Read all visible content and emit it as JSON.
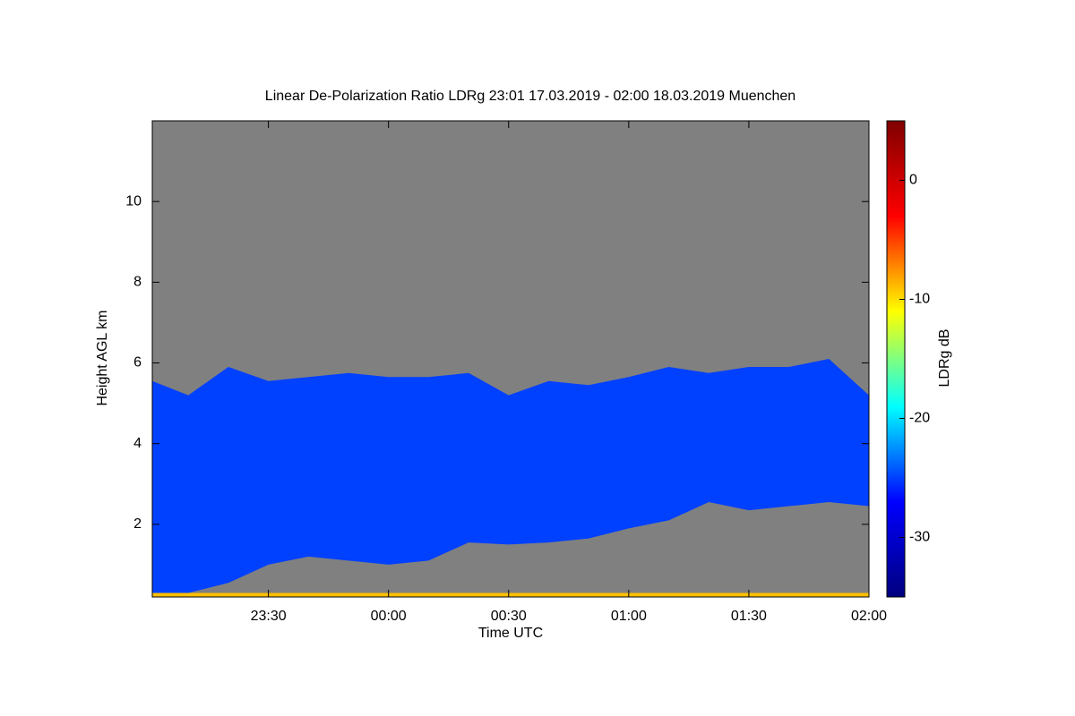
{
  "chart_data": {
    "type": "time-height",
    "title": "Linear De-Polarization Ratio LDRg   23:01 17.03.2019 - 02:00 18.03.2019 Muenchen",
    "x_label": "Time UTC",
    "y_label": "Height AGL km",
    "x": [
      "23:01",
      "23:10",
      "23:20",
      "23:30",
      "23:40",
      "23:50",
      "00:00",
      "00:10",
      "00:20",
      "00:30",
      "00:40",
      "00:50",
      "01:00",
      "01:10",
      "01:20",
      "01:30",
      "01:40",
      "01:50",
      "02:00"
    ],
    "xlim": [
      "23:01",
      "02:00"
    ],
    "xticks": [
      "23:30",
      "00:00",
      "00:30",
      "01:00",
      "01:30",
      "02:00"
    ],
    "ylim": [
      0.2,
      12
    ],
    "yticks": [
      2,
      4,
      6,
      8,
      10
    ],
    "background_color": "#808080",
    "layers": [
      {
        "ldr": -25,
        "top": [
          5.55,
          5.2,
          5.9,
          5.55,
          5.65,
          5.75,
          5.65,
          5.65,
          5.75,
          5.2,
          5.55,
          5.45,
          5.65,
          5.9,
          5.75,
          5.9,
          5.9,
          6.1,
          5.2
        ],
        "base": [
          0.3,
          0.3,
          0.55,
          1.0,
          1.2,
          1.1,
          1.0,
          1.1,
          1.55,
          1.5,
          1.55,
          1.65,
          1.9,
          2.1,
          2.55,
          2.35,
          2.45,
          2.55,
          2.45
        ]
      },
      {
        "ldr": -9,
        "top": [
          0.3,
          0.3,
          0.3,
          0.3,
          0.3,
          0.3,
          0.3,
          0.3,
          0.3,
          0.3,
          0.3,
          0.3,
          0.3,
          0.3,
          0.3,
          0.3,
          0.3,
          0.3,
          0.3
        ],
        "base": [
          0.2,
          0.2,
          0.2,
          0.2,
          0.2,
          0.2,
          0.2,
          0.2,
          0.2,
          0.2,
          0.2,
          0.2,
          0.2,
          0.2,
          0.2,
          0.2,
          0.2,
          0.2,
          0.2
        ]
      }
    ],
    "colorbar_label": "LDRg dB",
    "clim": [
      -35,
      5
    ],
    "cticks": [
      0,
      -10,
      -20,
      -30
    ],
    "colormap": [
      "#00007f",
      "#0000ff",
      "#00ffff",
      "#ffff00",
      "#ff0000",
      "#7f0000"
    ]
  }
}
